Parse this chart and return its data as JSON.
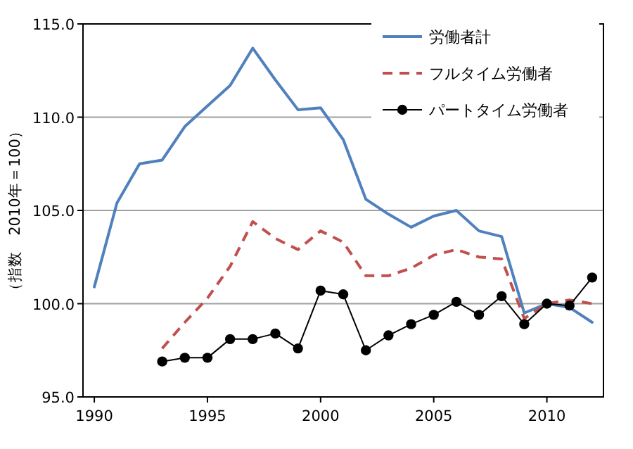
{
  "chart_data": {
    "type": "line",
    "ylabel": "（指数　2010年＝100）",
    "x": [
      1990,
      1991,
      1992,
      1993,
      1994,
      1995,
      1996,
      1997,
      1998,
      1999,
      2000,
      2001,
      2002,
      2003,
      2004,
      2005,
      2006,
      2007,
      2008,
      2009,
      2010,
      2011,
      2012
    ],
    "xlim": [
      1989.5,
      2012.5
    ],
    "xticks": [
      1990,
      1995,
      2000,
      2005,
      2010
    ],
    "ylim": [
      95,
      115
    ],
    "yticks": [
      {
        "value": 95,
        "label": "95.0"
      },
      {
        "value": 100,
        "label": "100.0"
      },
      {
        "value": 105,
        "label": "105.0"
      },
      {
        "value": 110,
        "label": "110.0"
      },
      {
        "value": 115,
        "label": "115.0"
      }
    ],
    "grid": "y",
    "legend": "top right",
    "series": [
      {
        "name": "労働者計",
        "color": "#4f81bd",
        "line_style": "solid",
        "marker": "none",
        "values": [
          100.9,
          105.4,
          107.5,
          107.7,
          109.5,
          110.6,
          111.7,
          113.7,
          112.0,
          110.4,
          110.5,
          108.8,
          105.6,
          104.8,
          104.1,
          104.7,
          105.0,
          103.9,
          103.6,
          99.5,
          100.0,
          99.8,
          99.0
        ]
      },
      {
        "name": "フルタイム労働者",
        "color": "#c0504d",
        "line_style": "dashed",
        "marker": "none",
        "values": [
          null,
          null,
          null,
          97.6,
          99.0,
          100.3,
          102.0,
          104.4,
          103.5,
          102.9,
          103.9,
          103.3,
          101.5,
          101.5,
          101.9,
          102.6,
          102.9,
          102.5,
          102.4,
          99.2,
          100.0,
          100.2,
          100.0
        ]
      },
      {
        "name": "パートタイム労働者",
        "color": "#000000",
        "line_style": "solid",
        "marker": "circle",
        "values": [
          null,
          null,
          null,
          96.9,
          97.1,
          97.1,
          98.1,
          98.1,
          98.4,
          97.6,
          100.7,
          100.5,
          97.5,
          98.3,
          98.9,
          99.4,
          100.1,
          99.4,
          100.4,
          98.9,
          100.0,
          99.9,
          101.4
        ]
      }
    ]
  }
}
